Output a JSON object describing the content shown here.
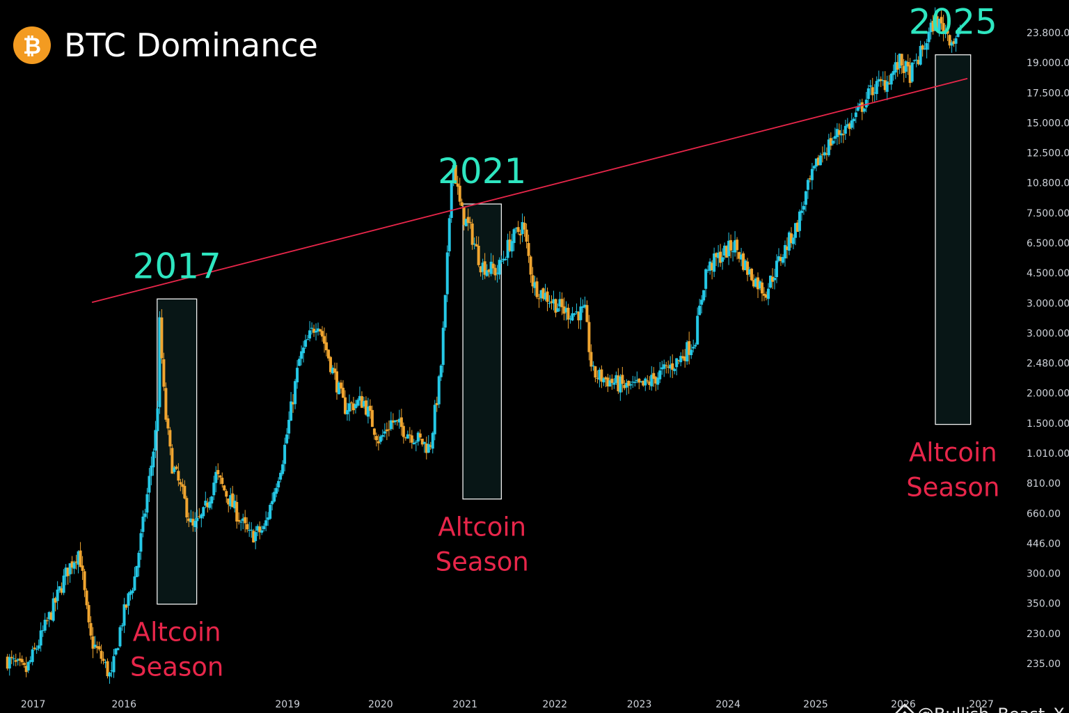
{
  "colors": {
    "background": "#000000",
    "up_candle": "#25c8e6",
    "down_candle": "#f0a530",
    "trendline": "#e8264a",
    "year_label": "#2ee6c0",
    "season_label": "#e8264a",
    "highlight_fill": "#081616",
    "highlight_stroke": "#f2f2f2",
    "logo": "#f39b21"
  },
  "header": {
    "logo_icon": "bitcoin-icon",
    "logo_glyph": "₿",
    "title": "BTC Dominance"
  },
  "watermark": {
    "icon": "binance-icon",
    "text": "@Bullish_Beast_X"
  },
  "chart_data": {
    "type": "candlestick",
    "title": "BTC Dominance",
    "xlabel": "",
    "ylabel": "",
    "y_tick_labels": [
      "23.800.00",
      "19.000.00",
      "17.500.00",
      "15.000.00",
      "12.500.00",
      "10.800.00",
      "7.500.00",
      "6.500.00",
      "4.500.00",
      "3.000.00",
      "3.000.00",
      "2.480.00",
      "2.000.00",
      "1.500.00",
      "1.010.00",
      "810.00",
      "660.00",
      "446.00",
      "300.00",
      "350.00",
      "230.00",
      "235.00"
    ],
    "x_tick_labels": [
      "2017",
      "2016",
      "2019",
      "2020",
      "2021",
      "2022",
      "2023",
      "2024",
      "2025",
      "2026",
      "2027"
    ],
    "x_ticks_pos": [
      0.9,
      9.4,
      24.7,
      33.4,
      41.3,
      49.7,
      57.6,
      65.9,
      74.1,
      82.3,
      89.6
    ],
    "y_range": [
      0,
      100
    ],
    "x_range": [
      0,
      100
    ],
    "series_anchors": [
      [
        0.7,
        6
      ],
      [
        2.6,
        4
      ],
      [
        4.0,
        9
      ],
      [
        5.3,
        14
      ],
      [
        6.5,
        19
      ],
      [
        7.6,
        22
      ],
      [
        8.6,
        9
      ],
      [
        9.7,
        6
      ],
      [
        10.6,
        3
      ],
      [
        11.5,
        11
      ],
      [
        12.8,
        18
      ],
      [
        13.7,
        27
      ],
      [
        14.9,
        41
      ],
      [
        15.1,
        56
      ],
      [
        15.6,
        43
      ],
      [
        16.2,
        35
      ],
      [
        17.3,
        30
      ],
      [
        18.2,
        25
      ],
      [
        19.2,
        27
      ],
      [
        20.4,
        33
      ],
      [
        21.8,
        29
      ],
      [
        23.5,
        24
      ],
      [
        24.9,
        25
      ],
      [
        26.7,
        36
      ],
      [
        28.2,
        50
      ],
      [
        29.9,
        56
      ],
      [
        31.2,
        49
      ],
      [
        32.4,
        43
      ],
      [
        34.2,
        44
      ],
      [
        35.7,
        38
      ],
      [
        36.8,
        41
      ],
      [
        38.7,
        39
      ],
      [
        40.4,
        37
      ],
      [
        41.4,
        48
      ],
      [
        41.9,
        60
      ],
      [
        42.5,
        80
      ],
      [
        43.3,
        72
      ],
      [
        44.2,
        69
      ],
      [
        45.2,
        64
      ],
      [
        46.7,
        63
      ],
      [
        47.8,
        67
      ],
      [
        49.1,
        70
      ],
      [
        50.1,
        61
      ],
      [
        51.6,
        59
      ],
      [
        53.2,
        57
      ],
      [
        54.9,
        57
      ],
      [
        55.6,
        48
      ],
      [
        57.1,
        47
      ],
      [
        58.7,
        46
      ],
      [
        60.3,
        46
      ],
      [
        62.0,
        48
      ],
      [
        63.7,
        50
      ],
      [
        65.2,
        53
      ],
      [
        66.2,
        63
      ],
      [
        67.3,
        65
      ],
      [
        68.9,
        67
      ],
      [
        70.2,
        63
      ],
      [
        71.8,
        60
      ],
      [
        73.2,
        65
      ],
      [
        74.8,
        70
      ],
      [
        75.7,
        75
      ],
      [
        76.9,
        80
      ],
      [
        78.3,
        83
      ],
      [
        79.9,
        85
      ],
      [
        81.8,
        90
      ],
      [
        83.1,
        91
      ],
      [
        84.4,
        94
      ],
      [
        85.3,
        92
      ],
      [
        86.6,
        96
      ],
      [
        87.6,
        100
      ],
      [
        88.5,
        99
      ],
      [
        89.3,
        97
      ],
      [
        89.9,
        98
      ]
    ],
    "trendline": {
      "from": [
        8.6,
        58.5
      ],
      "to": [
        90.5,
        91.5
      ]
    },
    "annotations": [
      {
        "year": "2017",
        "season_line1": "Altcoin",
        "season_line2": "Season",
        "x_from": 14.7,
        "x_to": 18.4,
        "y_from": 14.0,
        "y_to": 59.0
      },
      {
        "year": "2021",
        "season_line1": "Altcoin",
        "season_line2": "Season",
        "x_from": 43.3,
        "x_to": 46.9,
        "y_from": 29.5,
        "y_to": 73.0
      },
      {
        "year": "2025",
        "season_line1": "Altcoin",
        "season_line2": "Season",
        "x_from": 87.5,
        "x_to": 90.8,
        "y_from": 40.5,
        "y_to": 95.0
      }
    ]
  }
}
